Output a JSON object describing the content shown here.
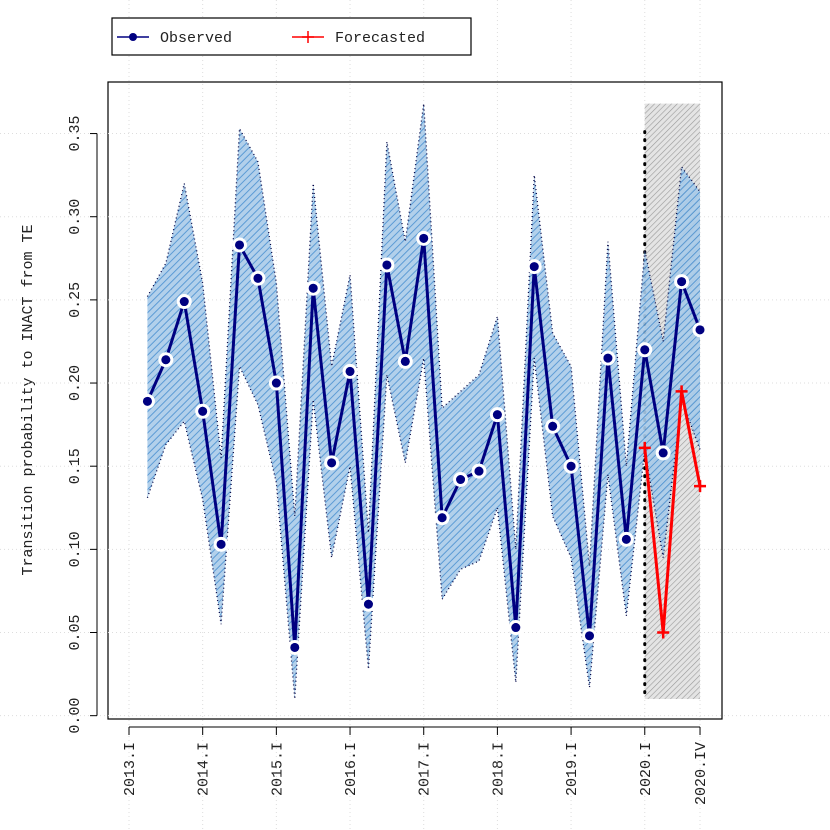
{
  "chart_data": {
    "type": "line",
    "y_label": "Transition probability to INACT from TE",
    "categories": [
      "2013.I",
      null,
      null,
      null,
      "2014.I",
      null,
      null,
      null,
      "2015.I",
      null,
      null,
      null,
      "2016.I",
      null,
      null,
      null,
      "2017.I",
      null,
      null,
      null,
      "2018.I",
      null,
      null,
      null,
      "2019.I",
      null,
      null,
      null,
      "2020.I",
      null,
      null,
      "2020.IV"
    ],
    "series": [
      {
        "name": "Observed",
        "color": "#000080",
        "band_color": "#4a90d0",
        "values": [
          null,
          0.189,
          0.214,
          0.249,
          0.183,
          0.103,
          0.283,
          0.263,
          0.2,
          0.041,
          0.257,
          0.152,
          0.207,
          0.067,
          0.271,
          0.213,
          0.287,
          0.119,
          0.142,
          0.147,
          0.181,
          0.053,
          0.27,
          0.174,
          0.15,
          0.048,
          0.215,
          0.106,
          0.22,
          0.158,
          0.261,
          0.232
        ],
        "upper": [
          null,
          0.252,
          0.272,
          0.32,
          0.26,
          0.155,
          0.353,
          0.333,
          0.26,
          0.12,
          0.32,
          0.21,
          0.265,
          0.11,
          0.345,
          0.285,
          0.368,
          0.185,
          0.195,
          0.205,
          0.24,
          0.1,
          0.325,
          0.23,
          0.21,
          0.09,
          0.285,
          0.15,
          0.28,
          0.225,
          0.33,
          0.315
        ],
        "lower": [
          null,
          0.131,
          0.163,
          0.177,
          0.13,
          0.055,
          0.21,
          0.187,
          0.14,
          0.01,
          0.19,
          0.095,
          0.15,
          0.028,
          0.205,
          0.152,
          0.215,
          0.07,
          0.088,
          0.093,
          0.125,
          0.02,
          0.215,
          0.12,
          0.095,
          0.017,
          0.145,
          0.06,
          0.16,
          0.095,
          0.19,
          0.16
        ]
      },
      {
        "name": "Forecasted",
        "color": "#ff0000",
        "values": [
          null,
          null,
          null,
          null,
          null,
          null,
          null,
          null,
          null,
          null,
          null,
          null,
          null,
          null,
          null,
          null,
          null,
          null,
          null,
          null,
          null,
          null,
          null,
          null,
          null,
          null,
          null,
          null,
          0.161,
          0.05,
          0.195,
          0.138
        ]
      }
    ],
    "ylim": [
      -0.002,
      0.381
    ],
    "yticks": [
      {
        "value": 0,
        "label": "0.00"
      },
      {
        "value": 0.05,
        "label": "0.05"
      },
      {
        "value": 0.1,
        "label": "0.10"
      },
      {
        "value": 0.15,
        "label": "0.15"
      },
      {
        "value": 0.2,
        "label": "0.20"
      },
      {
        "value": 0.25,
        "label": "0.25"
      },
      {
        "value": 0.3,
        "label": "0.30"
      },
      {
        "value": 0.35,
        "label": "0.35"
      }
    ],
    "grid": true,
    "legend": "top-left"
  }
}
